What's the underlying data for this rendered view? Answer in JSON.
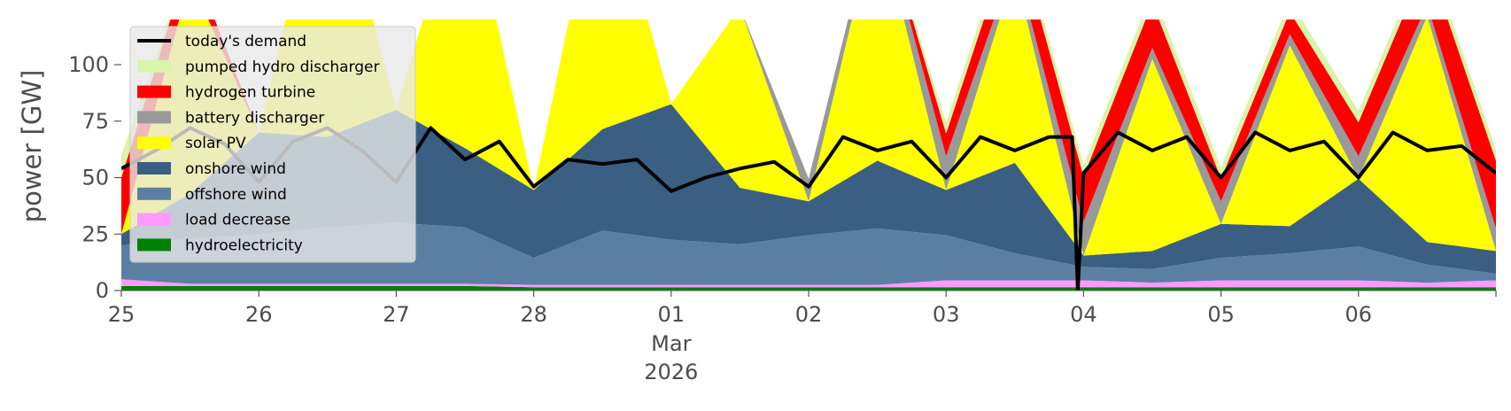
{
  "chart_data": {
    "type": "area",
    "title": "",
    "xlabel": "",
    "ylabel": "power [GW]",
    "ylim": [
      0,
      120
    ],
    "xlim": [
      "2026-02-25 00:00",
      "2026-03-06 24:00"
    ],
    "yticks": [
      0,
      25,
      50,
      75,
      100
    ],
    "xticks": [
      "25",
      "26",
      "27",
      "28",
      "01",
      "02",
      "03",
      "04",
      "05",
      "06"
    ],
    "xtick_dates": [
      "2026-02-25",
      "2026-02-26",
      "2026-02-27",
      "2026-02-28",
      "2026-03-01",
      "2026-03-02",
      "2026-03-03",
      "2026-03-04",
      "2026-03-05",
      "2026-03-06"
    ],
    "month_label": "Mar",
    "year_label": "2026",
    "grid": false,
    "legend_position": "top-left",
    "x": [
      "02-25 00",
      "02-25 12",
      "02-26 00",
      "02-26 12",
      "02-27 00",
      "02-27 12",
      "02-28 00",
      "02-28 12",
      "03-01 00",
      "03-01 12",
      "03-02 00",
      "03-02 12",
      "03-03 00",
      "03-03 12",
      "03-04 00",
      "03-04 12",
      "03-05 00",
      "03-05 12",
      "03-06 00",
      "03-06 12",
      "03-06 24"
    ],
    "series": [
      {
        "name": "hydroelectricity",
        "color": "#008000",
        "values": [
          2,
          2,
          2,
          2,
          2,
          2,
          1.5,
          1.5,
          1.5,
          1.5,
          1.5,
          1.5,
          1.5,
          1.5,
          1.5,
          1.5,
          1.5,
          1.5,
          1.5,
          1.5,
          1.5
        ]
      },
      {
        "name": "load decrease",
        "color": "#ff99ff",
        "values": [
          3,
          1,
          1,
          1,
          1,
          1,
          1,
          1,
          1,
          1,
          1,
          1,
          3,
          3,
          3,
          2,
          3,
          3,
          3,
          2,
          3
        ]
      },
      {
        "name": "offshore wind",
        "color": "#5b7fa3",
        "values": [
          15,
          20,
          22,
          25,
          27,
          25,
          12,
          24,
          20,
          18,
          22,
          25,
          20,
          12,
          6,
          6,
          10,
          12,
          15,
          8,
          3
        ]
      },
      {
        "name": "onshore wind",
        "color": "#3a5f82",
        "values": [
          5,
          20,
          45,
          40,
          50,
          35,
          30,
          45,
          60,
          25,
          15,
          30,
          20,
          40,
          5,
          8,
          15,
          12,
          30,
          10,
          10
        ]
      },
      {
        "name": "solar PV",
        "color": "#ffff00",
        "values": [
          0,
          95,
          0,
          130,
          0,
          120,
          0,
          120,
          0,
          80,
          0,
          110,
          0,
          85,
          0,
          85,
          0,
          80,
          0,
          100,
          0
        ]
      },
      {
        "name": "battery discharger",
        "color": "#999999",
        "values": [
          0,
          0,
          0,
          0,
          0,
          0,
          0,
          0,
          0,
          0,
          10,
          5,
          15,
          5,
          15,
          5,
          10,
          5,
          10,
          5,
          10
        ]
      },
      {
        "name": "hydrogen turbine",
        "color": "#ff0000",
        "values": [
          25,
          10,
          0,
          0,
          0,
          0,
          0,
          0,
          0,
          0,
          0,
          0,
          10,
          15,
          20,
          20,
          10,
          10,
          15,
          20,
          30
        ]
      },
      {
        "name": "pumped hydro discharger",
        "color": "#d8f5a8",
        "values": [
          10,
          0,
          0,
          0,
          0,
          0,
          0,
          0,
          0,
          0,
          0,
          0,
          5,
          5,
          5,
          5,
          5,
          5,
          5,
          5,
          5
        ]
      }
    ],
    "demand": {
      "name": "today's demand",
      "color": "#000000",
      "x": [
        "02-25 00",
        "02-25 06",
        "02-25 12",
        "02-25 18",
        "02-26 00",
        "02-26 06",
        "02-26 12",
        "02-26 18",
        "02-27 00",
        "02-27 06",
        "02-27 12",
        "02-27 18",
        "02-28 00",
        "02-28 06",
        "02-28 12",
        "02-28 18",
        "03-01 00",
        "03-01 06",
        "03-01 12",
        "03-01 18",
        "03-02 00",
        "03-02 06",
        "03-02 12",
        "03-02 18",
        "03-03 00",
        "03-03 06",
        "03-03 12",
        "03-03 18",
        "03-03 22",
        "03-03 23",
        "03-04 00",
        "03-04 06",
        "03-04 12",
        "03-04 18",
        "03-05 00",
        "03-05 06",
        "03-05 12",
        "03-05 18",
        "03-06 00",
        "03-06 06",
        "03-06 12",
        "03-06 18",
        "03-06 24"
      ],
      "values": [
        54,
        62,
        72,
        65,
        48,
        66,
        72,
        62,
        48,
        72,
        58,
        66,
        46,
        58,
        56,
        58,
        44,
        50,
        54,
        57,
        46,
        68,
        62,
        66,
        50,
        68,
        62,
        68,
        68,
        0,
        52,
        70,
        62,
        68,
        50,
        70,
        62,
        66,
        50,
        70,
        62,
        64,
        52
      ]
    },
    "legend": [
      "today's demand",
      "pumped hydro discharger",
      "hydrogen turbine",
      "battery discharger",
      "solar PV",
      "onshore wind",
      "offshore wind",
      "load decrease",
      "hydroelectricity"
    ]
  }
}
